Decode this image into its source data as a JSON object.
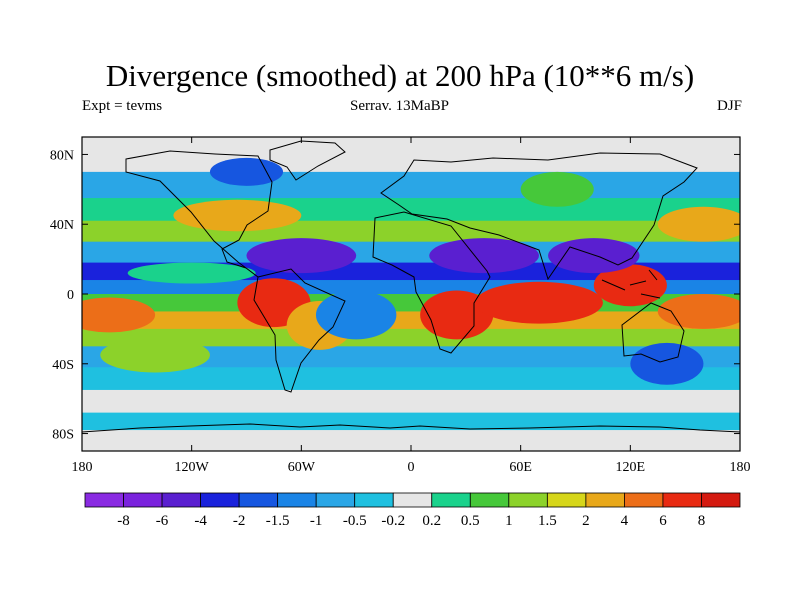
{
  "chart_data": {
    "type": "heatmap",
    "title": "Divergence (smoothed) at 200 hPa (10**6 m/s)",
    "subtitle_left": "Expt = tevms",
    "subtitle_center": "Serrav.  13MaBP",
    "subtitle_right": "DJF",
    "xlim": [
      -180,
      180
    ],
    "ylim": [
      -90,
      90
    ],
    "x_ticks": [
      {
        "value": -180,
        "label": "180"
      },
      {
        "value": -120,
        "label": "120W"
      },
      {
        "value": -60,
        "label": "60W"
      },
      {
        "value": 0,
        "label": "0"
      },
      {
        "value": 60,
        "label": "60E"
      },
      {
        "value": 120,
        "label": "120E"
      },
      {
        "value": 180,
        "label": "180"
      }
    ],
    "y_ticks": [
      {
        "value": 80,
        "label": "80N"
      },
      {
        "value": 40,
        "label": "40N"
      },
      {
        "value": 0,
        "label": "0"
      },
      {
        "value": -40,
        "label": "40S"
      },
      {
        "value": -80,
        "label": "80S"
      }
    ],
    "colorbar_boundaries": [
      "-8",
      "-6",
      "-4",
      "-2",
      "-1.5",
      "-1",
      "-0.5",
      "-0.2",
      "0.2",
      "0.5",
      "1",
      "1.5",
      "2",
      "4",
      "6",
      "8"
    ],
    "colorbar_colors": [
      "#8a2be2",
      "#7a22dd",
      "#5a1fd0",
      "#1a22dc",
      "#1656e0",
      "#1a84e6",
      "#2aa6e6",
      "#1fc0e0",
      "#e6e6e6",
      "#1ad28c",
      "#46c83a",
      "#8cd22a",
      "#d6d61a",
      "#e8a81a",
      "#ec6e18",
      "#e82a12",
      "#d41a10"
    ],
    "zonal_field": [
      {
        "lat": 90,
        "value": 0.0
      },
      {
        "lat": 70,
        "value": -0.6
      },
      {
        "lat": 55,
        "value": 0.3
      },
      {
        "lat": 42,
        "value": 1.0
      },
      {
        "lat": 30,
        "value": -0.8
      },
      {
        "lat": 18,
        "value": -3.0
      },
      {
        "lat": 8,
        "value": -1.2
      },
      {
        "lat": 0,
        "value": 0.5
      },
      {
        "lat": -10,
        "value": 2.5
      },
      {
        "lat": -20,
        "value": 1.0
      },
      {
        "lat": -30,
        "value": -0.9
      },
      {
        "lat": -42,
        "value": -0.3
      },
      {
        "lat": -55,
        "value": 0.1
      },
      {
        "lat": -68,
        "value": -0.5
      },
      {
        "lat": -78,
        "value": 0.0
      },
      {
        "lat": -90,
        "value": 0.0
      }
    ],
    "features": [
      {
        "lon": -75,
        "lat": -5,
        "rx": 20,
        "ry": 14,
        "value": 7
      },
      {
        "lon": -50,
        "lat": -18,
        "rx": 18,
        "ry": 14,
        "value": 3.5
      },
      {
        "lon": 25,
        "lat": -12,
        "rx": 20,
        "ry": 14,
        "value": 6
      },
      {
        "lon": 70,
        "lat": -5,
        "rx": 35,
        "ry": 12,
        "value": 6
      },
      {
        "lon": 120,
        "lat": 5,
        "rx": 20,
        "ry": 12,
        "value": 7
      },
      {
        "lon": 160,
        "lat": -10,
        "rx": 25,
        "ry": 10,
        "value": 5
      },
      {
        "lon": -165,
        "lat": -12,
        "rx": 25,
        "ry": 10,
        "value": 5
      },
      {
        "lon": -120,
        "lat": 12,
        "rx": 35,
        "ry": 6,
        "value": 0.3
      },
      {
        "lon": 40,
        "lat": 22,
        "rx": 30,
        "ry": 10,
        "value": -6
      },
      {
        "lon": -60,
        "lat": 22,
        "rx": 30,
        "ry": 10,
        "value": -4.5
      },
      {
        "lon": 100,
        "lat": 22,
        "rx": 25,
        "ry": 10,
        "value": -4.5
      },
      {
        "lon": -30,
        "lat": -12,
        "rx": 22,
        "ry": 14,
        "value": -1.5
      },
      {
        "lon": -140,
        "lat": -35,
        "rx": 30,
        "ry": 10,
        "value": 1.2
      },
      {
        "lon": -95,
        "lat": 45,
        "rx": 35,
        "ry": 9,
        "value": 2.0
      },
      {
        "lon": 160,
        "lat": 40,
        "rx": 25,
        "ry": 10,
        "value": 3.5
      },
      {
        "lon": 140,
        "lat": -40,
        "rx": 20,
        "ry": 12,
        "value": -2
      },
      {
        "lon": -90,
        "lat": 70,
        "rx": 20,
        "ry": 8,
        "value": -2
      },
      {
        "lon": 80,
        "lat": 60,
        "rx": 20,
        "ry": 10,
        "value": 0.8
      }
    ]
  }
}
